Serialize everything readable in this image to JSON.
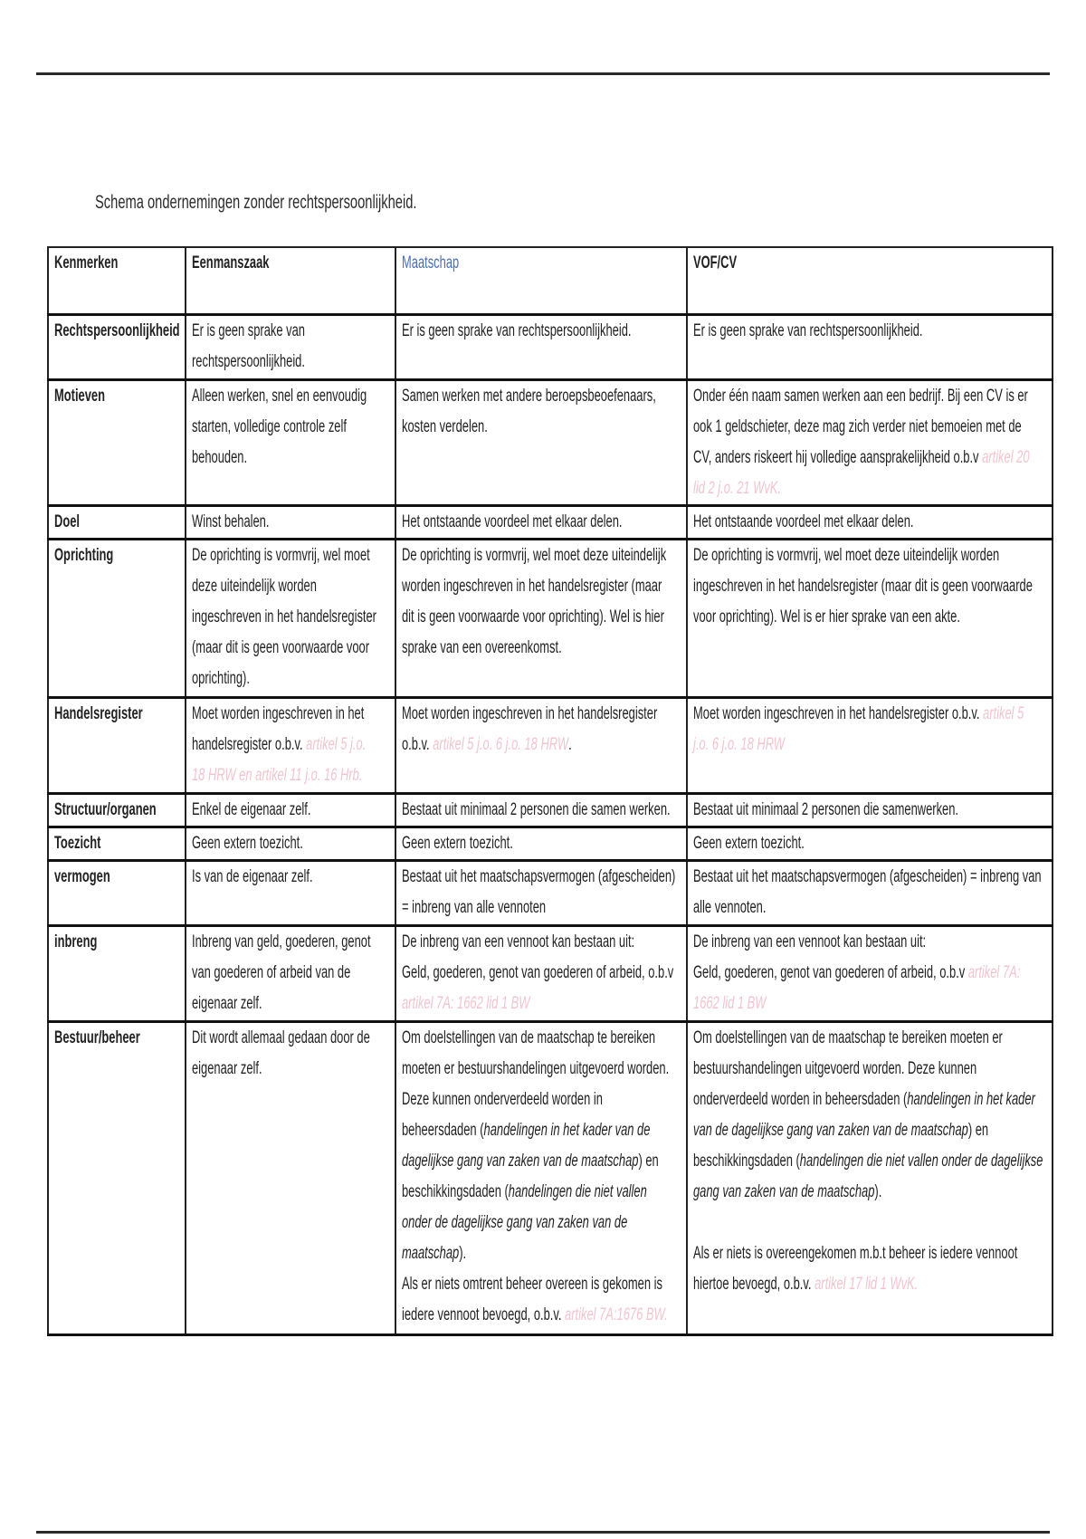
{
  "document": {
    "title": "Schema ondernemingen zonder rechtspersoonlijkheid.",
    "colors": {
      "reference": "#f2c4cf",
      "header_maatschap": "#4a6fb5",
      "text": "#222222"
    },
    "table": {
      "header": [
        "Kenmerken",
        "Eenmanszaak",
        "Maatschap",
        "VOF/CV"
      ],
      "rows": [
        {
          "label": "Rechtspersoonlijkheid",
          "cells": [
            [
              [
                [
                  "Er is geen sprake van",
                  "n"
                ]
              ],
              [
                [
                  "rechtspersoonlijkheid.",
                  "n"
                ]
              ]
            ],
            [
              [
                [
                  "Er is geen sprake van rechtspersoonlijkheid.",
                  "n"
                ]
              ]
            ],
            [
              [
                [
                  "Er is geen sprake van rechtspersoonlijkheid.",
                  "n"
                ]
              ]
            ]
          ]
        },
        {
          "label": "Motieven",
          "cells": [
            [
              [
                [
                  "Alleen werken, snel en eenvoudig",
                  "n"
                ]
              ],
              [
                [
                  "starten, volledige controle zelf",
                  "n"
                ]
              ],
              [
                [
                  "behouden.",
                  "n"
                ]
              ]
            ],
            [
              [
                [
                  "Samen werken met andere beroepsbeoefenaars,",
                  "n"
                ]
              ],
              [
                [
                  "kosten verdelen.",
                  "n"
                ]
              ]
            ],
            [
              [
                [
                  "Onder één naam samen werken aan een bedrijf. Bij een CV is er",
                  "n"
                ]
              ],
              [
                [
                  "ook 1 geldschieter, deze mag zich verder niet bemoeien met de",
                  "n"
                ]
              ],
              [
                [
                  "CV, anders riskeert hij volledige aansprakelijkheid o.b.v ",
                  "n"
                ],
                [
                  "artikel 20",
                  "r"
                ]
              ],
              [
                [
                  "lid 2 j.o. 21 WvK.",
                  "r"
                ]
              ]
            ]
          ]
        },
        {
          "label": "Doel",
          "cells": [
            [
              [
                [
                  "Winst behalen.",
                  "n"
                ]
              ]
            ],
            [
              [
                [
                  "Het ontstaande voordeel met elkaar delen.",
                  "n"
                ]
              ]
            ],
            [
              [
                [
                  "Het ontstaande voordeel met elkaar delen.",
                  "n"
                ]
              ]
            ]
          ]
        },
        {
          "label": "Oprichting",
          "cells": [
            [
              [
                [
                  "De oprichting is vormvrij, wel moet",
                  "n"
                ]
              ],
              [
                [
                  "deze uiteindelijk worden",
                  "n"
                ]
              ],
              [
                [
                  "ingeschreven in het handelsregister",
                  "n"
                ]
              ],
              [
                [
                  "(maar dit is geen voorwaarde voor",
                  "n"
                ]
              ],
              [
                [
                  "oprichting).",
                  "n"
                ]
              ]
            ],
            [
              [
                [
                  "De oprichting is vormvrij, wel moet deze uiteindelijk",
                  "n"
                ]
              ],
              [
                [
                  "worden ingeschreven in het handelsregister (maar",
                  "n"
                ]
              ],
              [
                [
                  "dit is geen voorwaarde voor oprichting). Wel is hier",
                  "n"
                ]
              ],
              [
                [
                  "sprake van een overeenkomst.",
                  "n"
                ]
              ]
            ],
            [
              [
                [
                  "De oprichting is vormvrij, wel moet deze uiteindelijk worden",
                  "n"
                ]
              ],
              [
                [
                  "ingeschreven in het handelsregister (maar dit is geen voorwaarde",
                  "n"
                ]
              ],
              [
                [
                  "voor oprichting). Wel is er hier sprake van een akte.",
                  "n"
                ]
              ]
            ]
          ]
        },
        {
          "label": "Handelsregister",
          "cells": [
            [
              [
                [
                  "Moet worden ingeschreven in het",
                  "n"
                ]
              ],
              [
                [
                  "handelsregister o.b.v. ",
                  "n"
                ],
                [
                  "artikel 5 j.o.",
                  "r"
                ]
              ],
              [
                [
                  "18 HRW en artikel 11 j.o. 16 Hrb.",
                  "r"
                ]
              ]
            ],
            [
              [
                [
                  "Moet worden ingeschreven in het handelsregister",
                  "n"
                ]
              ],
              [
                [
                  "o.b.v. ",
                  "n"
                ],
                [
                  "artikel 5 j.o. 6 j.o. 18 HRW",
                  "r"
                ],
                [
                  ".",
                  "n"
                ]
              ]
            ],
            [
              [
                [
                  "Moet worden ingeschreven in het handelsregister o.b.v. ",
                  "n"
                ],
                [
                  "artikel 5",
                  "r"
                ]
              ],
              [
                [
                  "j.o. 6 j.o. 18 HRW",
                  "r"
                ]
              ]
            ]
          ]
        },
        {
          "label": "Structuur/organen",
          "cells": [
            [
              [
                [
                  "Enkel de eigenaar zelf.",
                  "n"
                ]
              ]
            ],
            [
              [
                [
                  "Bestaat uit minimaal 2 personen die samen werken.",
                  "n"
                ]
              ]
            ],
            [
              [
                [
                  "Bestaat uit minimaal 2 personen die samenwerken.",
                  "n"
                ]
              ]
            ]
          ]
        },
        {
          "label": "Toezicht",
          "cells": [
            [
              [
                [
                  "Geen extern toezicht.",
                  "n"
                ]
              ]
            ],
            [
              [
                [
                  "Geen extern toezicht.",
                  "n"
                ]
              ]
            ],
            [
              [
                [
                  "Geen extern toezicht.",
                  "n"
                ]
              ]
            ]
          ]
        },
        {
          "label": "vermogen",
          "cells": [
            [
              [
                [
                  "Is van de eigenaar zelf.",
                  "n"
                ]
              ]
            ],
            [
              [
                [
                  "Bestaat uit het maatschapsvermogen (afgescheiden)",
                  "n"
                ]
              ],
              [
                [
                  "= inbreng van alle vennoten",
                  "n"
                ]
              ]
            ],
            [
              [
                [
                  "Bestaat uit het maatschapsvermogen (afgescheiden) = inbreng van",
                  "n"
                ]
              ],
              [
                [
                  "alle vennoten.",
                  "n"
                ]
              ]
            ]
          ]
        },
        {
          "label": "inbreng",
          "cells": [
            [
              [
                [
                  "Inbreng van geld, goederen, genot",
                  "n"
                ]
              ],
              [
                [
                  "van goederen of arbeid van de",
                  "n"
                ]
              ],
              [
                [
                  "eigenaar zelf.",
                  "n"
                ]
              ]
            ],
            [
              [
                [
                  "De inbreng van een vennoot kan bestaan uit:",
                  "n"
                ]
              ],
              [
                [
                  "Geld, goederen, genot van goederen of arbeid, o.b.v",
                  "n"
                ]
              ],
              [
                [
                  "artikel 7A: 1662 lid 1 BW",
                  "r"
                ]
              ]
            ],
            [
              [
                [
                  "De inbreng van een vennoot kan bestaan uit:",
                  "n"
                ]
              ],
              [
                [
                  "Geld, goederen, genot van goederen of arbeid, o.b.v ",
                  "n"
                ],
                [
                  "artikel 7A:",
                  "r"
                ]
              ],
              [
                [
                  "1662 lid 1 BW",
                  "r"
                ]
              ]
            ]
          ]
        },
        {
          "label": "Bestuur/beheer",
          "cells": [
            [
              [
                [
                  "Dit wordt allemaal gedaan door de",
                  "n"
                ]
              ],
              [
                [
                  "eigenaar zelf.",
                  "n"
                ]
              ]
            ],
            [
              [
                [
                  "Om doelstellingen van de maatschap te bereiken",
                  "n"
                ]
              ],
              [
                [
                  "moeten er bestuurshandelingen uitgevoerd worden.",
                  "n"
                ]
              ],
              [
                [
                  "Deze kunnen onderverdeeld worden in",
                  "n"
                ]
              ],
              [
                [
                  "beheersdaden (",
                  "n"
                ],
                [
                  "handelingen in het kader van de",
                  "i"
                ]
              ],
              [
                [
                  "dagelijkse gang van zaken van de maatschap",
                  "i"
                ],
                [
                  ") en",
                  "n"
                ]
              ],
              [
                [
                  "beschikkingsdaden (",
                  "n"
                ],
                [
                  "handelingen die niet vallen",
                  "i"
                ]
              ],
              [
                [
                  "onder de dagelijkse gang van zaken van de",
                  "i"
                ]
              ],
              [
                [
                  "maatschap",
                  "i"
                ],
                [
                  ").",
                  "n"
                ]
              ],
              [
                [
                  "Als er niets omtrent beheer overeen is gekomen is",
                  "n"
                ]
              ],
              [
                [
                  "iedere vennoot bevoegd, o.b.v. ",
                  "n"
                ],
                [
                  "artikel 7A:1676 BW.",
                  "r"
                ]
              ]
            ],
            [
              [
                [
                  "Om doelstellingen van de maatschap te bereiken moeten er",
                  "n"
                ]
              ],
              [
                [
                  "bestuurshandelingen uitgevoerd worden. Deze kunnen",
                  "n"
                ]
              ],
              [
                [
                  "onderverdeeld worden in beheersdaden (",
                  "n"
                ],
                [
                  "handelingen in het kader",
                  "i"
                ]
              ],
              [
                [
                  "van de dagelijkse gang van zaken van de maatschap",
                  "i"
                ],
                [
                  ") en",
                  "n"
                ]
              ],
              [
                [
                  "beschikkingsdaden (",
                  "n"
                ],
                [
                  "handelingen die niet vallen onder de dagelijkse",
                  "i"
                ]
              ],
              [
                [
                  "gang van zaken van de maatschap",
                  "i"
                ],
                [
                  ").",
                  "n"
                ]
              ],
              [
                [
                  "",
                  "n"
                ]
              ],
              [
                [
                  "Als er niets is overeengekomen m.b.t beheer is iedere vennoot",
                  "n"
                ]
              ],
              [
                [
                  "hiertoe bevoegd, o.b.v. ",
                  "n"
                ],
                [
                  "artikel 17 lid 1 WvK.",
                  "r"
                ]
              ]
            ]
          ]
        }
      ]
    }
  }
}
